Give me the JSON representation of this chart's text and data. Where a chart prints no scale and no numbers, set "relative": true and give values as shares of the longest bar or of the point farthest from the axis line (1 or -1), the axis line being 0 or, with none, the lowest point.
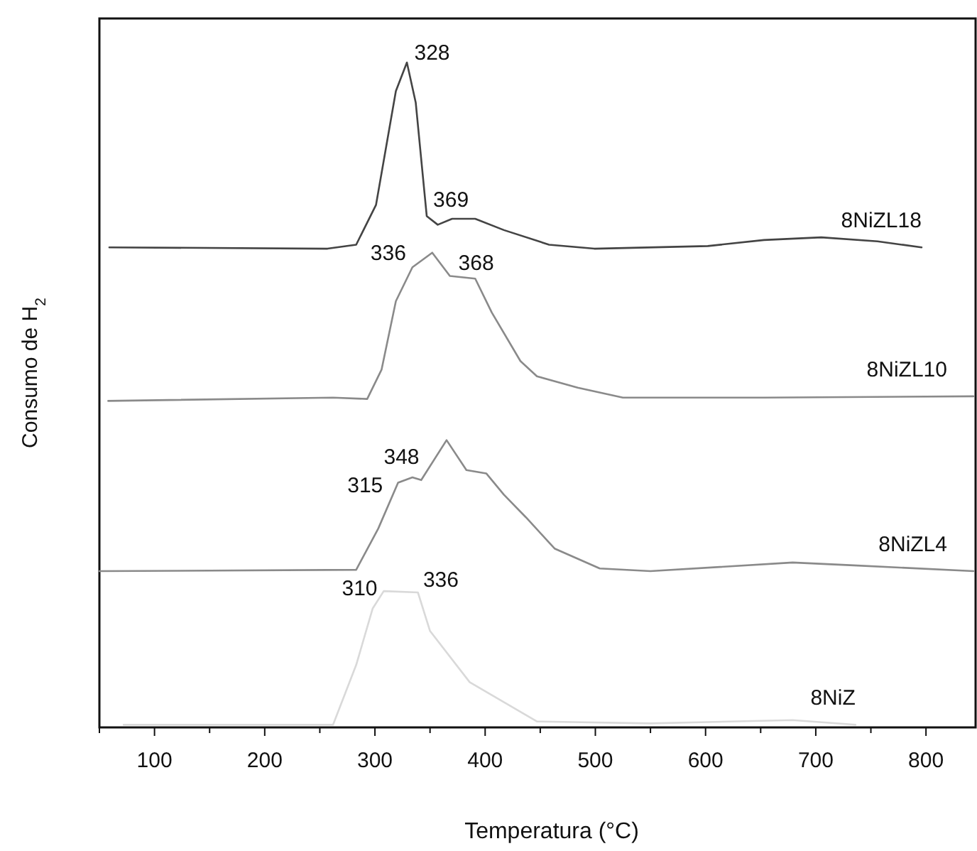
{
  "chart_data": {
    "type": "line",
    "relative": true,
    "xlabel": "Temperatura (°C)",
    "ylabel": "Consumo de H$_{2}$",
    "xlim": [
      50,
      845
    ],
    "xticks": [
      {
        "value": 50,
        "label": null
      },
      100,
      {
        "value": 150,
        "label": null
      },
      200,
      {
        "value": 250,
        "label": null
      },
      300,
      {
        "value": 350,
        "label": null
      },
      400,
      {
        "value": 450,
        "label": null
      },
      500,
      {
        "value": 550,
        "label": null
      },
      600,
      {
        "value": 650,
        "label": null
      },
      700,
      {
        "value": 750,
        "label": null
      },
      800
    ],
    "tick_labels": "x",
    "grid": false,
    "marker": "none",
    "line_style": "solid",
    "series": [
      {
        "name": "8NiZL18",
        "color": "#444444",
        "x": [
          59,
          257,
          283,
          301,
          319,
          329,
          337,
          347,
          357,
          370,
          391,
          417,
          458,
          499,
          602,
          653,
          705,
          756,
          796
        ],
        "values": [
          0.722,
          0.72,
          0.726,
          0.786,
          0.957,
          1.0,
          0.94,
          0.769,
          0.756,
          0.765,
          0.765,
          0.748,
          0.726,
          0.72,
          0.724,
          0.733,
          0.737,
          0.731,
          0.722
        ]
      },
      {
        "name": "8NiZL10",
        "color": "#8a8a8a",
        "x": [
          58,
          262,
          293,
          306,
          319,
          334,
          352,
          368,
          391,
          406,
          432,
          447,
          484,
          525,
          653,
          843
        ],
        "values": [
          0.491,
          0.496,
          0.494,
          0.538,
          0.641,
          0.692,
          0.714,
          0.679,
          0.675,
          0.624,
          0.551,
          0.528,
          0.511,
          0.496,
          0.496,
          0.498
        ]
      },
      {
        "name": "8NiZL4",
        "color": "#8a8a8a",
        "x": [
          50,
          283,
          303,
          321,
          334,
          342,
          365,
          383,
          401,
          417,
          437,
          463,
          504,
          550,
          679,
          731,
          843
        ],
        "values": [
          0.235,
          0.237,
          0.299,
          0.368,
          0.376,
          0.372,
          0.432,
          0.387,
          0.382,
          0.35,
          0.316,
          0.269,
          0.239,
          0.235,
          0.248,
          0.244,
          0.235
        ]
      },
      {
        "name": "8NiZ",
        "color": "#d9d9d9",
        "x": [
          72,
          262,
          283,
          298,
          308,
          339,
          350,
          386,
          447,
          550,
          679,
          736
        ],
        "values": [
          0.004,
          0.004,
          0.094,
          0.179,
          0.205,
          0.203,
          0.145,
          0.068,
          0.009,
          0.006,
          0.011,
          0.004
        ]
      }
    ],
    "annotations": [
      {
        "text": "328",
        "x": 328,
        "y": 0.996
      },
      {
        "text": "369",
        "x": 369,
        "y": 0.764
      },
      {
        "text": "336",
        "x": 336,
        "y": 0.694
      },
      {
        "text": "368",
        "x": 368,
        "y": 0.679
      },
      {
        "text": "348",
        "x": 348,
        "y": 0.388
      },
      {
        "text": "315",
        "x": 315,
        "y": 0.345
      },
      {
        "text": "336",
        "x": 336,
        "y": 0.203
      },
      {
        "text": "310",
        "x": 310,
        "y": 0.19
      }
    ]
  }
}
